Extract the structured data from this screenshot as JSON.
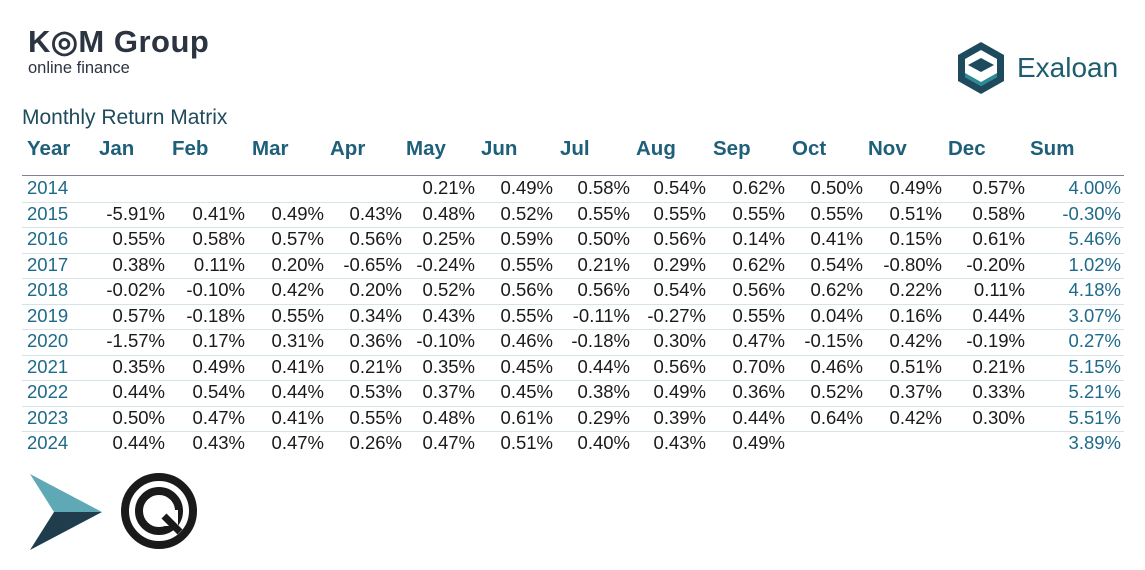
{
  "brand": {
    "name": "K◎M Group",
    "tagline": "online finance"
  },
  "partner_logo": {
    "name": "Exaloan"
  },
  "chart_data": {
    "type": "table",
    "title": "Monthly Return Matrix",
    "columns": [
      "Year",
      "Jan",
      "Feb",
      "Mar",
      "Apr",
      "May",
      "Jun",
      "Jul",
      "Aug",
      "Sep",
      "Oct",
      "Nov",
      "Dec",
      "Sum"
    ],
    "rows": [
      [
        "2014",
        "",
        "",
        "",
        "",
        "0.21%",
        "0.49%",
        "0.58%",
        "0.54%",
        "0.62%",
        "0.50%",
        "0.49%",
        "0.57%",
        "4.00%"
      ],
      [
        "2015",
        "-5.91%",
        "0.41%",
        "0.49%",
        "0.43%",
        "0.48%",
        "0.52%",
        "0.55%",
        "0.55%",
        "0.55%",
        "0.55%",
        "0.51%",
        "0.58%",
        "-0.30%"
      ],
      [
        "2016",
        "0.55%",
        "0.58%",
        "0.57%",
        "0.56%",
        "0.25%",
        "0.59%",
        "0.50%",
        "0.56%",
        "0.14%",
        "0.41%",
        "0.15%",
        "0.61%",
        "5.46%"
      ],
      [
        "2017",
        "0.38%",
        "0.11%",
        "0.20%",
        "-0.65%",
        "-0.24%",
        "0.55%",
        "0.21%",
        "0.29%",
        "0.62%",
        "0.54%",
        "-0.80%",
        "-0.20%",
        "1.02%"
      ],
      [
        "2018",
        "-0.02%",
        "-0.10%",
        "0.42%",
        "0.20%",
        "0.52%",
        "0.56%",
        "0.56%",
        "0.54%",
        "0.56%",
        "0.62%",
        "0.22%",
        "0.11%",
        "4.18%"
      ],
      [
        "2019",
        "0.57%",
        "-0.18%",
        "0.55%",
        "0.34%",
        "0.43%",
        "0.55%",
        "-0.11%",
        "-0.27%",
        "0.55%",
        "0.04%",
        "0.16%",
        "0.44%",
        "3.07%"
      ],
      [
        "2020",
        "-1.57%",
        "0.17%",
        "0.31%",
        "0.36%",
        "-0.10%",
        "0.46%",
        "-0.18%",
        "0.30%",
        "0.47%",
        "-0.15%",
        "0.42%",
        "-0.19%",
        "0.27%"
      ],
      [
        "2021",
        "0.35%",
        "0.49%",
        "0.41%",
        "0.21%",
        "0.35%",
        "0.45%",
        "0.44%",
        "0.56%",
        "0.70%",
        "0.46%",
        "0.51%",
        "0.21%",
        "5.15%"
      ],
      [
        "2022",
        "0.44%",
        "0.54%",
        "0.44%",
        "0.53%",
        "0.37%",
        "0.45%",
        "0.38%",
        "0.49%",
        "0.36%",
        "0.52%",
        "0.37%",
        "0.33%",
        "5.21%"
      ],
      [
        "2023",
        "0.50%",
        "0.47%",
        "0.41%",
        "0.55%",
        "0.48%",
        "0.61%",
        "0.29%",
        "0.39%",
        "0.44%",
        "0.64%",
        "0.42%",
        "0.30%",
        "5.51%"
      ],
      [
        "2024",
        "0.44%",
        "0.43%",
        "0.47%",
        "0.26%",
        "0.47%",
        "0.51%",
        "0.40%",
        "0.43%",
        "0.49%",
        "",
        "",
        "",
        "3.89%"
      ]
    ]
  },
  "colors": {
    "header": "#1e5f7a",
    "year": "#1e6a8a",
    "sum": "#1e6a8a",
    "brand_dark": "#2b3440",
    "exa_dark": "#1d4a5c",
    "exa_teal": "#2a8a96",
    "arrow_light": "#5fa8b5",
    "arrow_dark": "#1f3d4d"
  }
}
